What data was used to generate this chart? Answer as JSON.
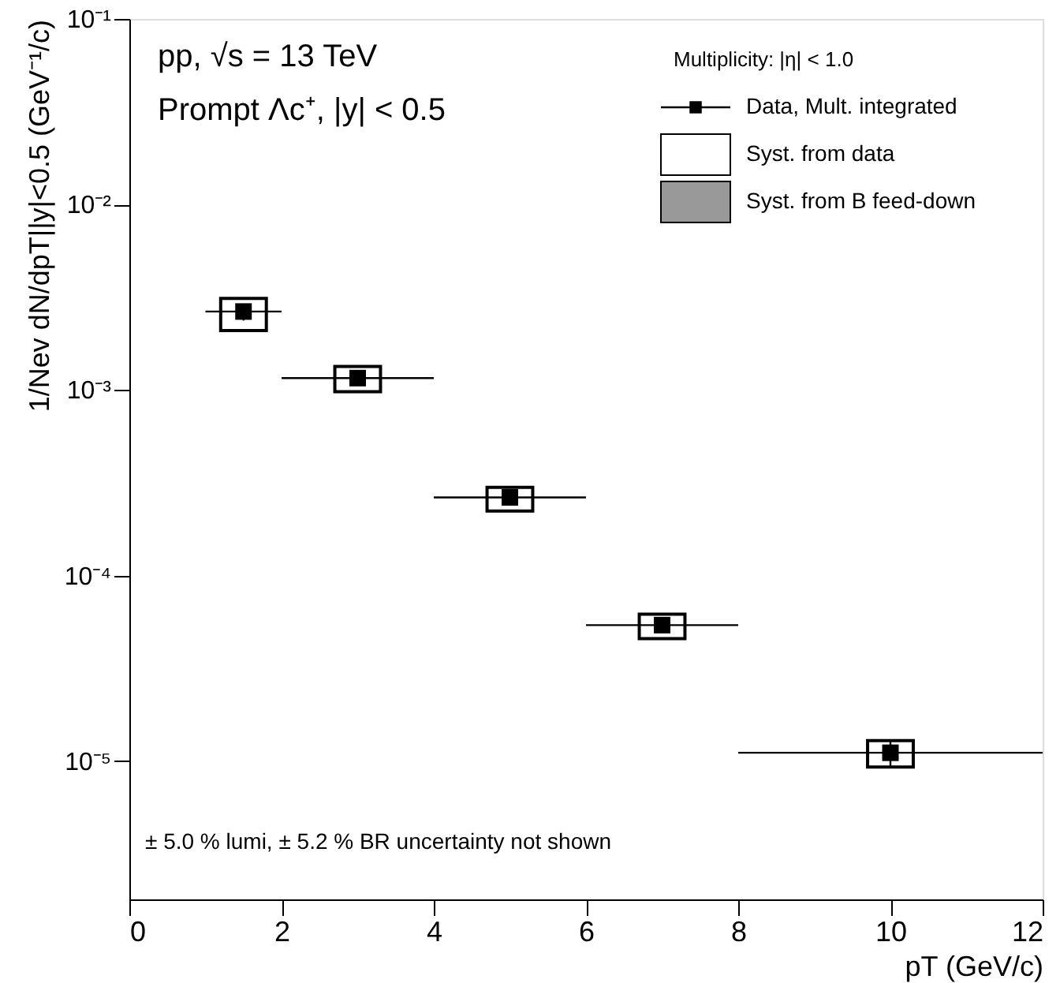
{
  "chart_data": {
    "type": "scatter",
    "annotations": [
      "pp, √s = 13 TeV",
      "Prompt Λc⁺, |y| < 0.5",
      "± 5.0 % lumi, ± 5.2 % BR uncertainty not shown"
    ],
    "xlabel": "pT (GeV/c)",
    "ylabel": "1/Nev dN/dpT||y|<0.5 (GeV⁻¹/c)",
    "legend_title": "Multiplicity: |η| < 1.0",
    "legend": "top right",
    "log": "y",
    "xlim": [
      0,
      12
    ],
    "xticks": [
      0,
      2,
      4,
      6,
      8,
      10,
      12
    ],
    "ylim": [
      1.8e-06,
      0.1
    ],
    "yticks": [
      {
        "value": 1e-05,
        "label": "10⁻⁵"
      },
      {
        "value": 0.0001,
        "label": "10⁻⁴"
      },
      {
        "value": 0.001,
        "label": "10⁻³"
      },
      {
        "value": 0.01,
        "label": "10⁻²"
      },
      {
        "value": 0.1,
        "label": "10⁻¹"
      }
    ],
    "grid": false,
    "series": [
      {
        "name": "Syst. from data",
        "type": "bar",
        "color": "#ffffff",
        "x": [
          1.5,
          3,
          5,
          7,
          10
        ],
        "base": [
          0.00209,
          0.00098,
          0.000223,
          4.57e-05,
          9.3e-06
        ],
        "values": [
          0.00103,
          0.00036,
          7.6e-05,
          1.63e-05,
          3.6e-06
        ]
      },
      {
        "name": "Syst. from B feed-down",
        "type": "bar",
        "color": "#999999",
        "base": [
          null,
          null,
          null,
          null,
          null
        ],
        "values": [
          null,
          null,
          null,
          null,
          null
        ]
      },
      {
        "name": "Data, Mult. integrated",
        "color": "#000000",
        "marker": "square",
        "x": [
          1.5,
          3,
          5,
          7,
          10
        ],
        "values": [
          0.00265,
          0.00116,
          0.000264,
          5.41e-05,
          1.11e-05
        ],
        "xerrors": [
          [
            1,
            2
          ],
          [
            2,
            4
          ],
          [
            4,
            6
          ],
          [
            6,
            8
          ],
          [
            8,
            12
          ]
        ],
        "errors": [
          [
            0.00237,
            0.00288
          ],
          null,
          null,
          null,
          [
            9.2e-06,
            1.31e-05
          ]
        ]
      }
    ]
  }
}
